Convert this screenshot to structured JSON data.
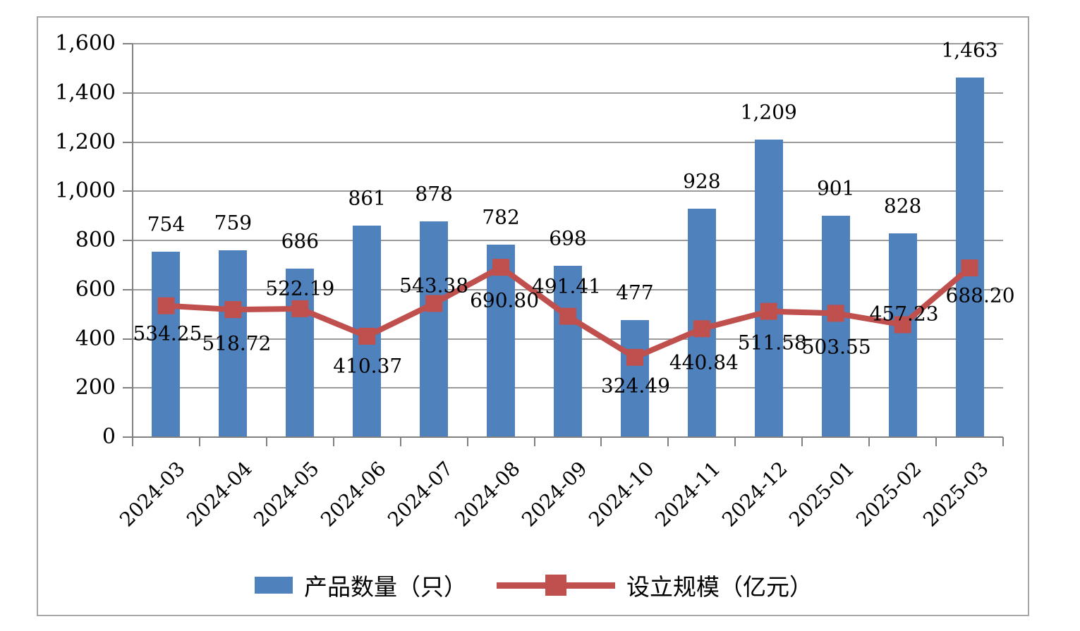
{
  "chart_data": {
    "type": "bar+line combo",
    "categories": [
      "2024-03",
      "2024-04",
      "2024-05",
      "2024-06",
      "2024-07",
      "2024-08",
      "2024-09",
      "2024-10",
      "2024-11",
      "2024-12",
      "2025-01",
      "2025-02",
      "2025-03"
    ],
    "series": [
      {
        "name": "产品数量（只）",
        "type": "bar",
        "color": "#4F81BD",
        "values": [
          754,
          759,
          686,
          861,
          878,
          782,
          698,
          477,
          928,
          1209,
          901,
          828,
          1463
        ],
        "labels": [
          "754",
          "759",
          "686",
          "861",
          "878",
          "782",
          "698",
          "477",
          "928",
          "1,209",
          "901",
          "828",
          "1,463"
        ]
      },
      {
        "name": "设立规模（亿元）",
        "type": "line",
        "color": "#C0504D",
        "marker": "square",
        "values": [
          534.25,
          518.72,
          522.19,
          410.37,
          543.38,
          690.8,
          491.41,
          324.49,
          440.84,
          511.58,
          503.55,
          457.23,
          688.2
        ],
        "labels": [
          "534.25",
          "518.72",
          "522.19",
          "410.37",
          "543.38",
          "690.80",
          "491.41",
          "324.49",
          "440.84",
          "511.58",
          "503.55",
          "457.23",
          "688.20"
        ],
        "label_offsets": [
          [
            2,
            40
          ],
          [
            5,
            49
          ],
          [
            0,
            -28
          ],
          [
            1,
            43
          ],
          [
            0,
            -24
          ],
          [
            5,
            48
          ],
          [
            -2,
            -42
          ],
          [
            1,
            41
          ],
          [
            3,
            49
          ],
          [
            5,
            45
          ],
          [
            1,
            49
          ],
          [
            2,
            -15
          ],
          [
            15,
            40
          ]
        ]
      }
    ],
    "title": "",
    "xlabel": "",
    "ylabel": "",
    "ylim": [
      0,
      1600
    ],
    "ytick_step": 200,
    "ytick_labels": [
      "0",
      "200",
      "400",
      "600",
      "800",
      "1,000",
      "1,200",
      "1,400",
      "1,600"
    ],
    "grid": true,
    "legend_position": "bottom-center",
    "colors": {
      "bar": "#4F81BD",
      "line": "#C0504D",
      "gridline": "#9B9B9B",
      "axis": "#808080",
      "frame_border": "#A6A6A6",
      "text": "#000000",
      "background": "#FFFFFF"
    }
  }
}
